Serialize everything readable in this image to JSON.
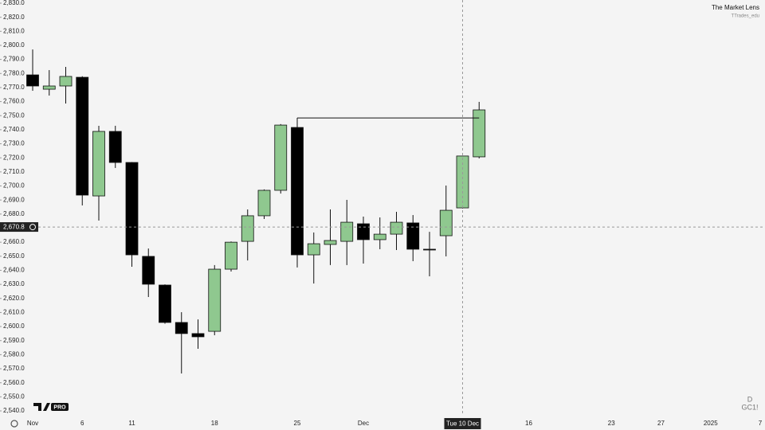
{
  "chart_data": {
    "type": "candlestick",
    "title": "The Market Lens",
    "subtitle": "TTrades_edu",
    "interval": "D",
    "symbol": "GC1!",
    "badge": "PRO",
    "categories": [
      "Nov",
      null,
      null,
      "6",
      null,
      null,
      "11",
      null,
      null,
      null,
      null,
      "18",
      null,
      null,
      null,
      null,
      "25",
      null,
      null,
      null,
      "Dec",
      null,
      null,
      null,
      null,
      null,
      null,
      null,
      null,
      null,
      "16",
      null,
      null,
      null,
      null,
      "23",
      null,
      null,
      "27",
      null,
      null,
      "2025",
      null,
      null,
      "7"
    ],
    "open": [
      2779.0,
      2768.8,
      2771.1,
      2777.3,
      2692.9,
      2738.8,
      2716.7,
      2649.9,
      2629.5,
      2602.9,
      2595.0,
      2596.6,
      2640.8,
      2660.6,
      2678.8,
      2696.9,
      2741.6,
      2651.0,
      2658.4,
      2660.6,
      2673.1,
      2661.8,
      2665.7,
      2673.7,
      2655.0,
      2664.6,
      2684.4,
      2720.7,
      null,
      null,
      null,
      null,
      null,
      null,
      null,
      null,
      null,
      null,
      null,
      null,
      null,
      null,
      null,
      null,
      null
    ],
    "high": [
      2797.1,
      2782.4,
      2784.7,
      2778.0,
      2742.8,
      2742.8,
      2717.0,
      2655.5,
      2630.0,
      2610.2,
      2605.1,
      2643.7,
      2660.5,
      2683.3,
      2697.5,
      2744.0,
      2748.4,
      2666.9,
      2683.3,
      2690.1,
      2678.2,
      2677.6,
      2681.6,
      2679.3,
      2667.4,
      2700.3,
      2721.5,
      2759.8,
      null,
      null,
      null,
      null,
      null,
      null,
      null,
      null,
      null,
      null,
      null,
      null,
      null,
      null,
      null,
      null,
      null
    ],
    "low": [
      2767.7,
      2764.3,
      2758.6,
      2686.1,
      2675.4,
      2712.8,
      2642.5,
      2621.0,
      2602.0,
      2566.6,
      2584.2,
      2593.8,
      2639.1,
      2647.0,
      2676.5,
      2694.6,
      2642.0,
      2630.6,
      2643.7,
      2643.7,
      2644.8,
      2655.0,
      2654.4,
      2646.5,
      2635.7,
      2649.9,
      2684.0,
      2719.6,
      null,
      null,
      null,
      null,
      null,
      null,
      null,
      null,
      null,
      null,
      null,
      null,
      null,
      null,
      null,
      null,
      null
    ],
    "close": [
      2771.1,
      2771.1,
      2777.9,
      2693.5,
      2738.8,
      2716.7,
      2651.0,
      2630.1,
      2602.9,
      2595.0,
      2592.7,
      2640.8,
      2660.0,
      2678.8,
      2696.9,
      2743.3,
      2651.0,
      2658.9,
      2661.2,
      2674.2,
      2661.8,
      2665.7,
      2674.2,
      2655.0,
      2654.6,
      2682.7,
      2721.3,
      2754.1,
      null,
      null,
      null,
      null,
      null,
      null,
      null,
      null,
      null,
      null,
      null,
      null,
      null,
      null,
      null,
      null,
      null
    ],
    "up_color": "#8fc88f",
    "down_color": "#000000",
    "level_line": 2748.4,
    "crosshair": {
      "x_label": "Tue 10 Dec",
      "y": {
        "value": 2670.8,
        "label": "2,670.8"
      }
    },
    "ylim": [
      2540,
      2830
    ],
    "yticks": [
      {
        "value": 2540,
        "label": "2,540.0"
      },
      {
        "value": 2550,
        "label": "2,550.0"
      },
      {
        "value": 2560,
        "label": "2,560.0"
      },
      {
        "value": 2570,
        "label": "2,570.0"
      },
      {
        "value": 2580,
        "label": "2,580.0"
      },
      {
        "value": 2590,
        "label": "2,590.0"
      },
      {
        "value": 2600,
        "label": "2,600.0"
      },
      {
        "value": 2610,
        "label": "2,610.0"
      },
      {
        "value": 2620,
        "label": "2,620.0"
      },
      {
        "value": 2630,
        "label": "2,630.0"
      },
      {
        "value": 2640,
        "label": "2,640.0"
      },
      {
        "value": 2650,
        "label": "2,650.0"
      },
      {
        "value": 2660,
        "label": "2,660.0"
      },
      {
        "value": 2670,
        "label": "2,670.0"
      },
      {
        "value": 2680,
        "label": "2,680.0"
      },
      {
        "value": 2690,
        "label": "2,690.0"
      },
      {
        "value": 2700,
        "label": "2,700.0"
      },
      {
        "value": 2710,
        "label": "2,710.0"
      },
      {
        "value": 2720,
        "label": "2,720.0"
      },
      {
        "value": 2730,
        "label": "2,730.0"
      },
      {
        "value": 2740,
        "label": "2,740.0"
      },
      {
        "value": 2750,
        "label": "2,750.0"
      },
      {
        "value": 2760,
        "label": "2,760.0"
      },
      {
        "value": 2770,
        "label": "2,770.0"
      },
      {
        "value": 2780,
        "label": "2,780.0"
      },
      {
        "value": 2790,
        "label": "2,790.0"
      },
      {
        "value": 2800,
        "label": "2,800.0"
      },
      {
        "value": 2810,
        "label": "2,810.0"
      },
      {
        "value": 2820,
        "label": "2,820.0"
      },
      {
        "value": 2830,
        "label": "2,830.0"
      }
    ]
  }
}
